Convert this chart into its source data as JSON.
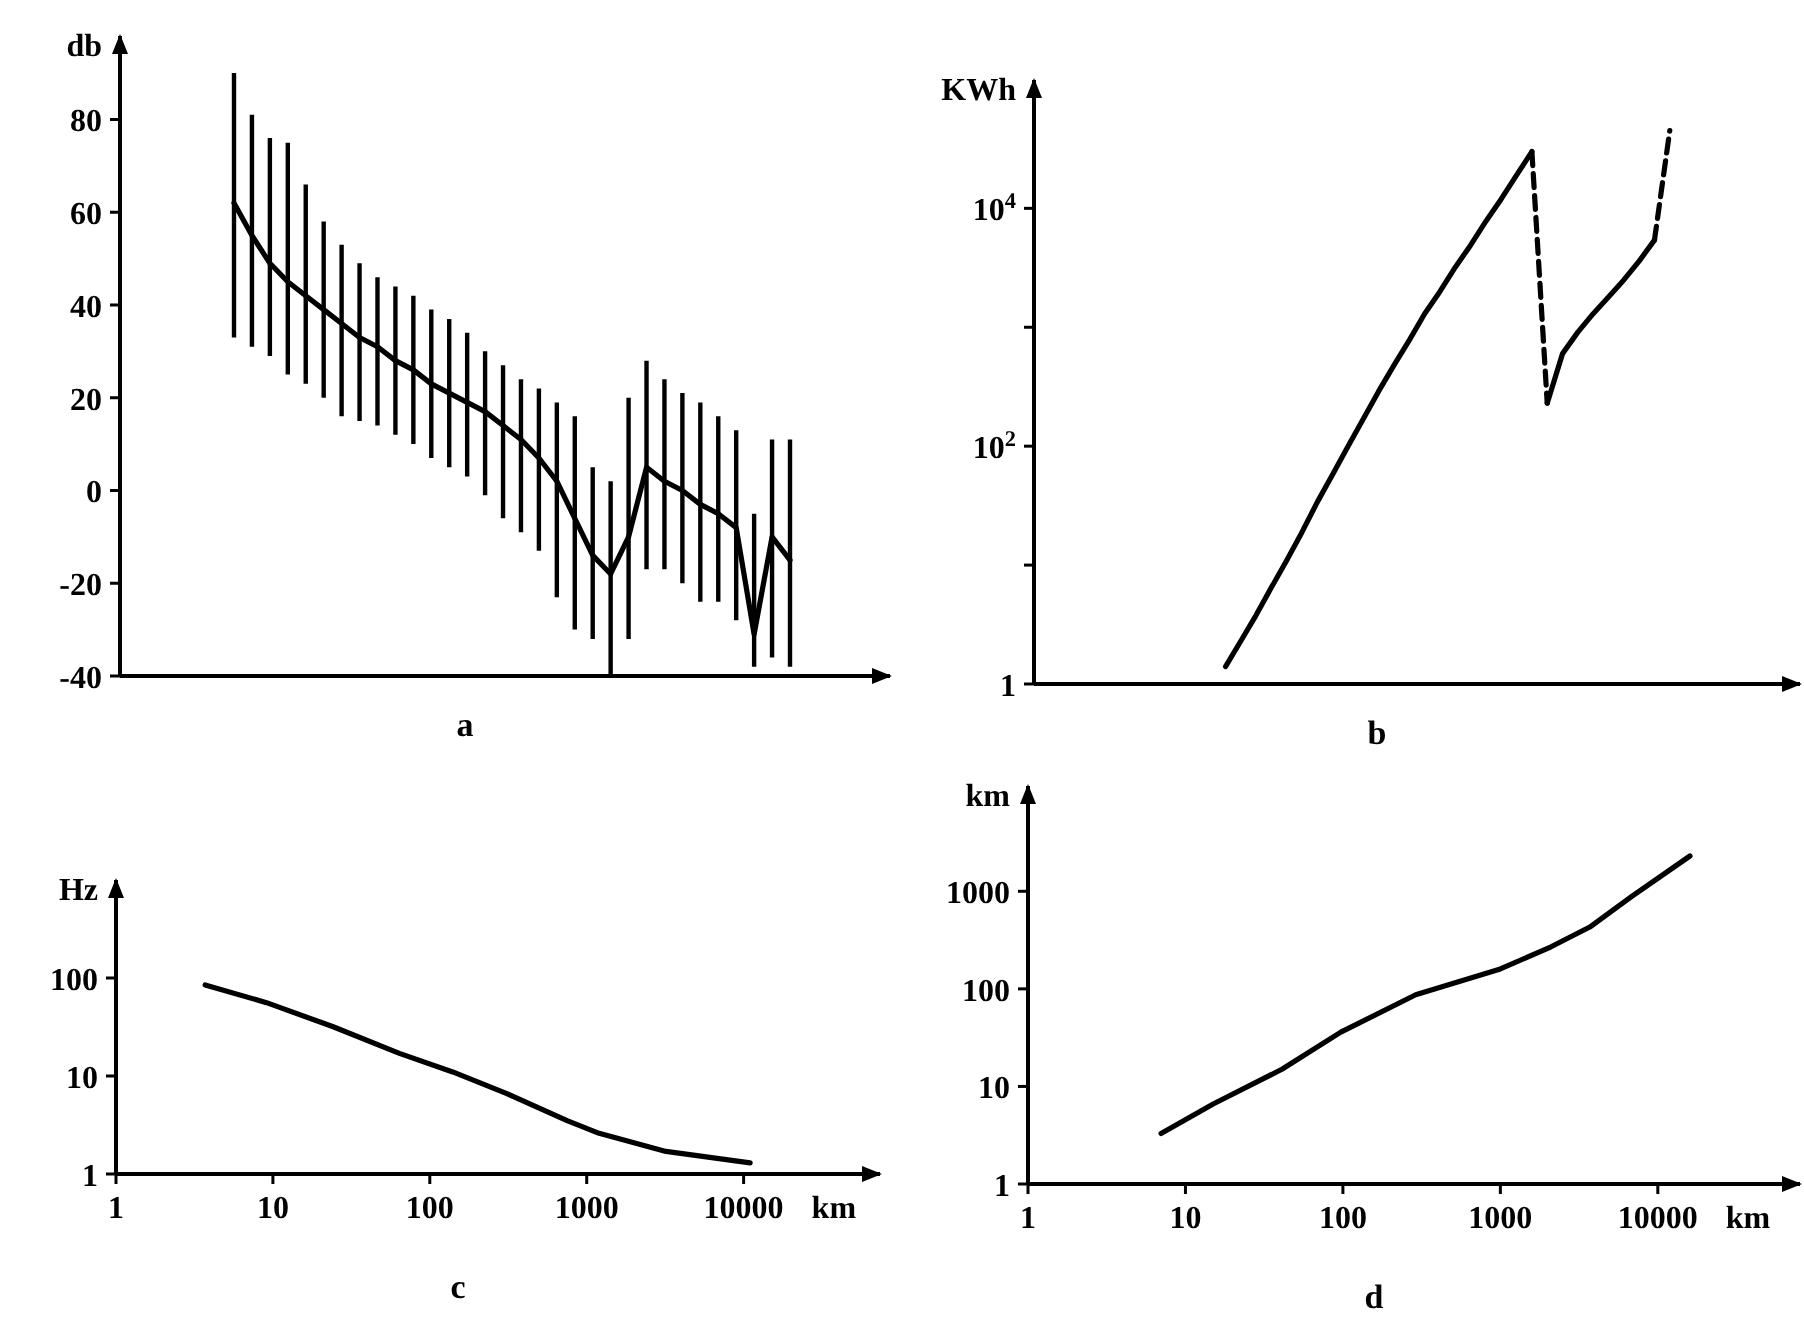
{
  "chart_data": [
    {
      "type": "line",
      "title": "a",
      "ylabel": "db",
      "categories": [
        null,
        null,
        null,
        null,
        null,
        null,
        null,
        null,
        null,
        null,
        null,
        null,
        null,
        null,
        null,
        null,
        null,
        null,
        null,
        null,
        null,
        null,
        null,
        null,
        null,
        null,
        null,
        null,
        null,
        null,
        null,
        null
      ],
      "ylim": [
        -40,
        98
      ],
      "yticks": [
        -40,
        -20,
        0,
        20,
        40,
        60,
        80
      ],
      "grid": false,
      "marker": "none",
      "series": [
        {
          "color": "#000000",
          "values": [
            62,
            55,
            49,
            45,
            42,
            39,
            36,
            33,
            31,
            28,
            26,
            23,
            21,
            19,
            17,
            14,
            11,
            7,
            2,
            -6,
            -14,
            -18,
            -10,
            5,
            2,
            0,
            -3,
            -5,
            -8,
            -31,
            -10,
            -15
          ],
          "errors": [
            [
              33,
              90
            ],
            [
              31,
              81
            ],
            [
              29,
              76
            ],
            [
              25,
              75
            ],
            [
              23,
              66
            ],
            [
              20,
              58
            ],
            [
              16,
              53
            ],
            [
              15,
              49
            ],
            [
              14,
              46
            ],
            [
              12,
              44
            ],
            [
              10,
              42
            ],
            [
              7,
              39
            ],
            [
              5,
              37
            ],
            [
              3,
              34
            ],
            [
              -1,
              30
            ],
            [
              -6,
              27
            ],
            [
              -9,
              24
            ],
            [
              -13,
              22
            ],
            [
              -23,
              19
            ],
            [
              -30,
              16
            ],
            [
              -32,
              5
            ],
            [
              -40,
              2
            ],
            [
              -32,
              20
            ],
            [
              -17,
              28
            ],
            [
              -17,
              24
            ],
            [
              -20,
              21
            ],
            [
              -24,
              19
            ],
            [
              -24,
              16
            ],
            [
              -28,
              13
            ],
            [
              -38,
              -5
            ],
            [
              -36,
              11
            ],
            [
              -38,
              11
            ]
          ]
        }
      ]
    },
    {
      "type": "line",
      "title": "b",
      "ylabel": "KWh",
      "log": "y",
      "categories": [
        null,
        null,
        null,
        null,
        null,
        null,
        null,
        null,
        null,
        null,
        null,
        null,
        null,
        null,
        null,
        null,
        null,
        null,
        null,
        null,
        null,
        null,
        null,
        null,
        null,
        null,
        null,
        null,
        null,
        null,
        null,
        null,
        null,
        null,
        null,
        null,
        null,
        null,
        null,
        null,
        null,
        null,
        null,
        null,
        null,
        null,
        null,
        null,
        null,
        null
      ],
      "ylim": [
        1,
        120000
      ],
      "yticks": [
        1,
        {
          "value": 10,
          "label": null
        },
        {
          "value": 100,
          "label": "10$^{2}$"
        },
        {
          "value": 1000,
          "label": null
        },
        {
          "value": 10000,
          "label": "10$^{4}$"
        }
      ],
      "grid": false,
      "marker": "none",
      "series": [
        {
          "color": "#000000",
          "line_style": "solid",
          "values": [
            null,
            null,
            null,
            null,
            null,
            null,
            null,
            null,
            null,
            null,
            null,
            null,
            1.4,
            2.3,
            3.8,
            6.5,
            11,
            19,
            34,
            58,
            100,
            170,
            290,
            480,
            780,
            1300,
            2000,
            3200,
            4900,
            7800,
            12000,
            19000,
            30000,
            null,
            null,
            null,
            null,
            null,
            null,
            null,
            null,
            null,
            null,
            null,
            null,
            null,
            null,
            null,
            null,
            null
          ]
        },
        {
          "color": "#000000",
          "line_style": "dashed",
          "values": [
            null,
            null,
            null,
            null,
            null,
            null,
            null,
            null,
            null,
            null,
            null,
            null,
            null,
            null,
            null,
            null,
            null,
            null,
            null,
            null,
            null,
            null,
            null,
            null,
            null,
            null,
            null,
            null,
            null,
            null,
            null,
            null,
            30000,
            230,
            null,
            null,
            null,
            null,
            null,
            null,
            null,
            null,
            null,
            null,
            null,
            null,
            null,
            null,
            null,
            null
          ]
        },
        {
          "color": "#000000",
          "line_style": "solid",
          "values": [
            null,
            null,
            null,
            null,
            null,
            null,
            null,
            null,
            null,
            null,
            null,
            null,
            null,
            null,
            null,
            null,
            null,
            null,
            null,
            null,
            null,
            null,
            null,
            null,
            null,
            null,
            null,
            null,
            null,
            null,
            null,
            null,
            null,
            230,
            600,
            910,
            1300,
            1800,
            2500,
            3600,
            5400,
            null,
            null,
            null,
            null,
            null,
            null,
            null,
            null,
            null
          ]
        },
        {
          "color": "#000000",
          "line_style": "dashed",
          "values": [
            null,
            null,
            null,
            null,
            null,
            null,
            null,
            null,
            null,
            null,
            null,
            null,
            null,
            null,
            null,
            null,
            null,
            null,
            null,
            null,
            null,
            null,
            null,
            null,
            null,
            null,
            null,
            null,
            null,
            null,
            null,
            null,
            null,
            null,
            null,
            null,
            null,
            null,
            null,
            null,
            5400,
            45000,
            null,
            null,
            null,
            null,
            null,
            null,
            null,
            null
          ]
        }
      ]
    },
    {
      "type": "line",
      "title": "c",
      "xlabel": "km",
      "ylabel": "Hz",
      "log": "xy",
      "xlim": [
        1,
        74000
      ],
      "xticks": [
        1,
        10,
        100,
        1000,
        10000
      ],
      "ylim": [
        1,
        1000
      ],
      "yticks": [
        1,
        10,
        100
      ],
      "grid": false,
      "marker": "none",
      "series": [
        {
          "color": "#000000",
          "x": [
            3.7,
            9.1,
            24,
            64,
            140,
            310,
            750,
            1200,
            3200,
            11000
          ],
          "values": [
            85,
            56,
            32,
            17,
            11,
            6.6,
            3.5,
            2.6,
            1.7,
            1.3
          ]
        }
      ]
    },
    {
      "type": "line",
      "title": "d",
      "xlabel": "km",
      "ylabel": "km",
      "log": "xy",
      "xlim": [
        1,
        80000
      ],
      "xticks": [
        1,
        10,
        100,
        1000,
        10000
      ],
      "ylim": [
        1,
        12000
      ],
      "yticks": [
        1,
        10,
        100,
        1000
      ],
      "grid": false,
      "marker": "none",
      "series": [
        {
          "color": "#000000",
          "x": [
            7,
            15,
            41,
            97,
            290,
            1000,
            2100,
            3700,
            6800,
            16000
          ],
          "values": [
            3.3,
            6.6,
            15,
            36,
            87,
            160,
            270,
            430,
            880,
            2300
          ]
        }
      ]
    }
  ]
}
